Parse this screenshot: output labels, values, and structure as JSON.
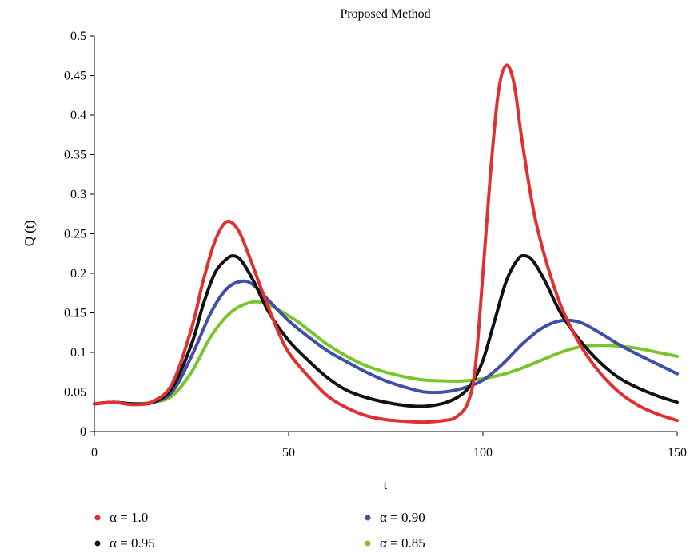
{
  "chart_data": {
    "type": "line",
    "title": "Proposed Method",
    "xlabel": "t",
    "ylabel": "Q (t)",
    "xlim": [
      0,
      150
    ],
    "ylim": [
      0,
      0.5
    ],
    "xticks": [
      0,
      50,
      100,
      150
    ],
    "xtick_labels": [
      "0",
      "50",
      "100",
      "150"
    ],
    "yticks": [
      0,
      0.05,
      0.1,
      0.15,
      0.2,
      0.25,
      0.3,
      0.35,
      0.4,
      0.45,
      0.5
    ],
    "ytick_labels": [
      "0",
      "0.05",
      "0.1",
      "0.15",
      "0.2",
      "0.25",
      "0.3",
      "0.35",
      "0.4",
      "0.45",
      "0.5"
    ],
    "grid": false,
    "legend_position": "bottom",
    "series": [
      {
        "name": "α = 1.0",
        "color": "#e03030",
        "points": [
          [
            0,
            0.035
          ],
          [
            5,
            0.037
          ],
          [
            10,
            0.034
          ],
          [
            15,
            0.038
          ],
          [
            20,
            0.06
          ],
          [
            25,
            0.13
          ],
          [
            28,
            0.19
          ],
          [
            31,
            0.24
          ],
          [
            34,
            0.265
          ],
          [
            37,
            0.255
          ],
          [
            40,
            0.22
          ],
          [
            43,
            0.18
          ],
          [
            47,
            0.13
          ],
          [
            50,
            0.1
          ],
          [
            55,
            0.07
          ],
          [
            60,
            0.045
          ],
          [
            65,
            0.03
          ],
          [
            70,
            0.02
          ],
          [
            75,
            0.015
          ],
          [
            80,
            0.013
          ],
          [
            85,
            0.012
          ],
          [
            90,
            0.014
          ],
          [
            93,
            0.018
          ],
          [
            96,
            0.035
          ],
          [
            98,
            0.08
          ],
          [
            100,
            0.2
          ],
          [
            102,
            0.33
          ],
          [
            104,
            0.43
          ],
          [
            106,
            0.463
          ],
          [
            108,
            0.44
          ],
          [
            110,
            0.37
          ],
          [
            113,
            0.28
          ],
          [
            116,
            0.22
          ],
          [
            120,
            0.16
          ],
          [
            125,
            0.11
          ],
          [
            130,
            0.075
          ],
          [
            135,
            0.05
          ],
          [
            140,
            0.033
          ],
          [
            145,
            0.022
          ],
          [
            150,
            0.014
          ]
        ]
      },
      {
        "name": "α = 0.95",
        "color": "#111111",
        "points": [
          [
            0,
            0.035
          ],
          [
            5,
            0.037
          ],
          [
            10,
            0.035
          ],
          [
            15,
            0.037
          ],
          [
            20,
            0.055
          ],
          [
            25,
            0.11
          ],
          [
            28,
            0.16
          ],
          [
            31,
            0.2
          ],
          [
            34,
            0.218
          ],
          [
            36,
            0.222
          ],
          [
            38,
            0.215
          ],
          [
            41,
            0.19
          ],
          [
            45,
            0.15
          ],
          [
            50,
            0.115
          ],
          [
            55,
            0.09
          ],
          [
            60,
            0.068
          ],
          [
            65,
            0.052
          ],
          [
            70,
            0.043
          ],
          [
            75,
            0.037
          ],
          [
            80,
            0.033
          ],
          [
            85,
            0.032
          ],
          [
            90,
            0.036
          ],
          [
            94,
            0.045
          ],
          [
            97,
            0.06
          ],
          [
            100,
            0.09
          ],
          [
            103,
            0.14
          ],
          [
            106,
            0.19
          ],
          [
            109,
            0.218
          ],
          [
            111,
            0.222
          ],
          [
            113,
            0.215
          ],
          [
            116,
            0.19
          ],
          [
            120,
            0.15
          ],
          [
            125,
            0.115
          ],
          [
            130,
            0.088
          ],
          [
            135,
            0.068
          ],
          [
            140,
            0.055
          ],
          [
            145,
            0.045
          ],
          [
            150,
            0.037
          ]
        ]
      },
      {
        "name": "α = 0.90",
        "color": "#4050a8",
        "points": [
          [
            0,
            0.035
          ],
          [
            5,
            0.037
          ],
          [
            10,
            0.035
          ],
          [
            15,
            0.037
          ],
          [
            20,
            0.05
          ],
          [
            25,
            0.095
          ],
          [
            30,
            0.15
          ],
          [
            34,
            0.18
          ],
          [
            38,
            0.19
          ],
          [
            41,
            0.185
          ],
          [
            45,
            0.165
          ],
          [
            50,
            0.14
          ],
          [
            55,
            0.12
          ],
          [
            60,
            0.102
          ],
          [
            65,
            0.088
          ],
          [
            70,
            0.075
          ],
          [
            75,
            0.064
          ],
          [
            80,
            0.056
          ],
          [
            85,
            0.05
          ],
          [
            90,
            0.05
          ],
          [
            95,
            0.055
          ],
          [
            100,
            0.065
          ],
          [
            105,
            0.085
          ],
          [
            110,
            0.11
          ],
          [
            115,
            0.13
          ],
          [
            120,
            0.14
          ],
          [
            125,
            0.138
          ],
          [
            130,
            0.125
          ],
          [
            135,
            0.11
          ],
          [
            140,
            0.097
          ],
          [
            145,
            0.085
          ],
          [
            150,
            0.073
          ]
        ]
      },
      {
        "name": "α = 0.85",
        "color": "#7ac52b",
        "points": [
          [
            0,
            0.035
          ],
          [
            5,
            0.037
          ],
          [
            10,
            0.035
          ],
          [
            15,
            0.037
          ],
          [
            20,
            0.045
          ],
          [
            25,
            0.075
          ],
          [
            30,
            0.12
          ],
          [
            35,
            0.15
          ],
          [
            40,
            0.163
          ],
          [
            44,
            0.162
          ],
          [
            48,
            0.152
          ],
          [
            52,
            0.14
          ],
          [
            56,
            0.125
          ],
          [
            60,
            0.11
          ],
          [
            65,
            0.095
          ],
          [
            70,
            0.083
          ],
          [
            75,
            0.075
          ],
          [
            80,
            0.069
          ],
          [
            85,
            0.065
          ],
          [
            90,
            0.064
          ],
          [
            95,
            0.064
          ],
          [
            100,
            0.067
          ],
          [
            105,
            0.072
          ],
          [
            110,
            0.08
          ],
          [
            115,
            0.09
          ],
          [
            120,
            0.1
          ],
          [
            125,
            0.107
          ],
          [
            130,
            0.109
          ],
          [
            135,
            0.108
          ],
          [
            140,
            0.105
          ],
          [
            145,
            0.1
          ],
          [
            150,
            0.095
          ]
        ]
      }
    ]
  }
}
